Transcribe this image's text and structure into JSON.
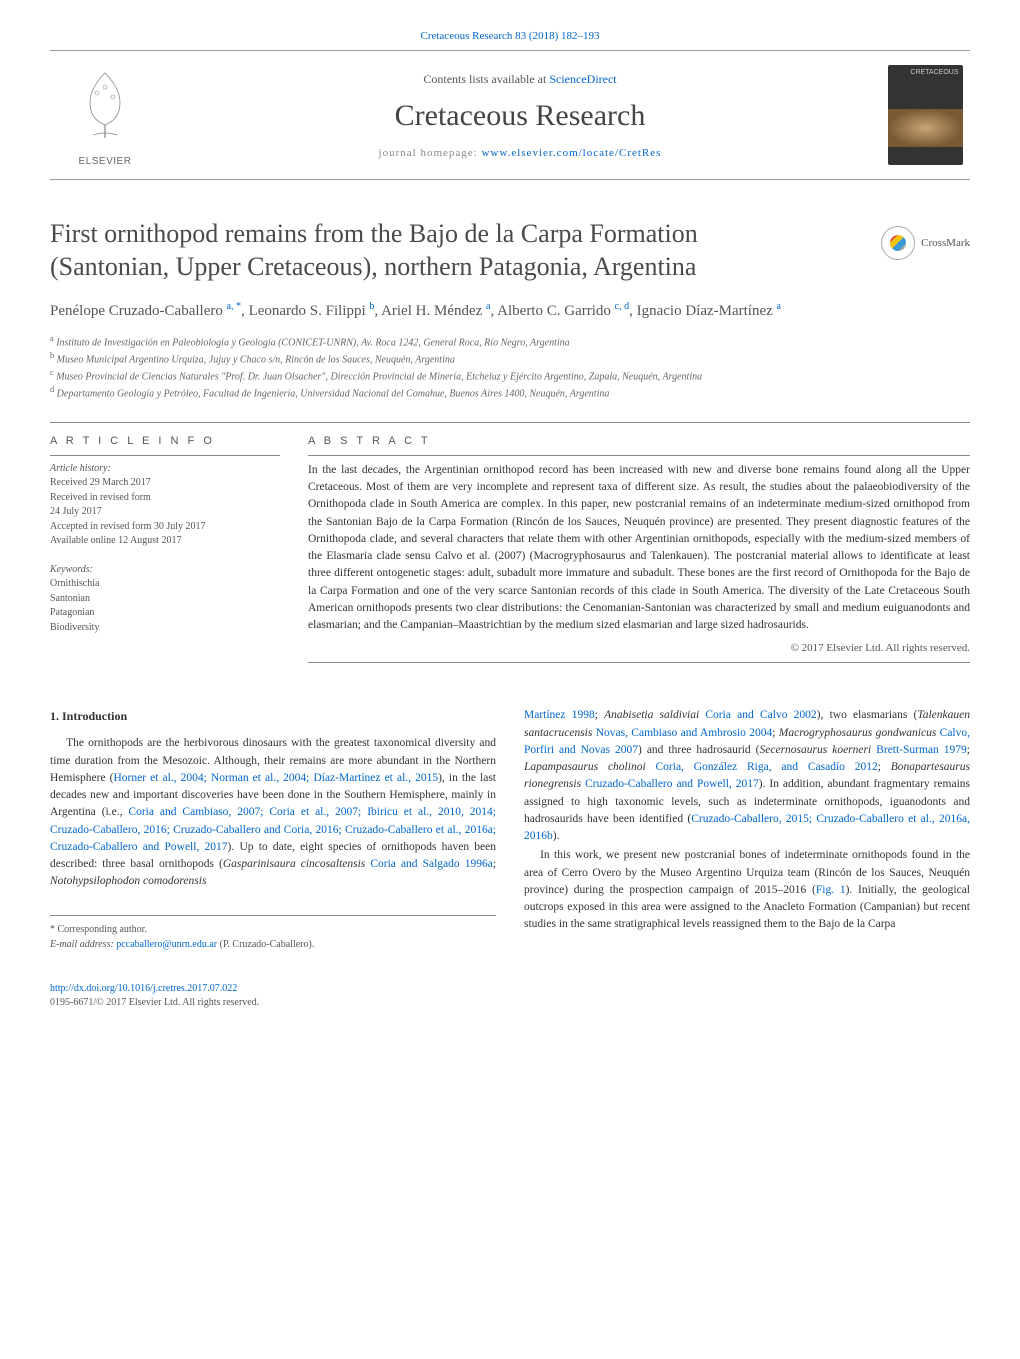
{
  "colors": {
    "link": "#0066cc",
    "text": "#2b2b2b",
    "muted": "#555555",
    "rule": "#888888",
    "background": "#ffffff"
  },
  "typography": {
    "body_font": "Georgia, Times New Roman, serif",
    "body_size_pt": 9,
    "title_size_pt": 20,
    "journal_size_pt": 22
  },
  "top_link": {
    "prefix": "Cretaceous Research 83 (2018) 182",
    "dash": "–",
    "suffix": "193"
  },
  "header": {
    "contents_prefix": "Contents lists available at ",
    "contents_link": "ScienceDirect",
    "journal": "Cretaceous Research",
    "homepage_prefix": "journal homepage: ",
    "homepage_url": "www.elsevier.com/locate/CretRes",
    "publisher": "ELSEVIER",
    "cover_label": "CRETACEOUS"
  },
  "crossmark": "CrossMark",
  "title_lines": [
    "First ornithopod remains from the Bajo de la Carpa Formation",
    "(Santonian, Upper Cretaceous), northern Patagonia, Argentina"
  ],
  "authors_html": "Penélope Cruzado-Caballero <sup>a, *</sup>, Leonardo S. Filippi <sup>b</sup>, Ariel H. Méndez <sup>a</sup>, Alberto C. Garrido <sup>c, d</sup>, Ignacio Díaz-Martínez <sup>a</sup>",
  "affiliations": [
    {
      "sup": "a",
      "text": "Instituto de Investigación en Paleobiología y Geología (CONICET-UNRN), Av. Roca 1242, General Roca, Río Negro, Argentina"
    },
    {
      "sup": "b",
      "text": "Museo Municipal Argentino Urquiza, Jujuy y Chaco s/n, Rincón de los Sauces, Neuquén, Argentina"
    },
    {
      "sup": "c",
      "text": "Museo Provincial de Ciencias Naturales \"Prof. Dr. Juan Olsacher\", Dirección Provincial de Minería, Etcheluz y Ejército Argentino, Zapala, Neuquén, Argentina"
    },
    {
      "sup": "d",
      "text": "Departamento Geología y Petróleo, Facultad de Ingeniería, Universidad Nacional del Comahue, Buenos Aires 1400, Neuquén, Argentina"
    }
  ],
  "article_info": {
    "head": "A R T I C L E   I N F O",
    "history_label": "Article history:",
    "received": "Received 29 March 2017",
    "revised_form": "Received in revised form",
    "revised_date": "24 July 2017",
    "accepted": "Accepted in revised form 30 July 2017",
    "online": "Available online 12 August 2017",
    "keywords_label": "Keywords:",
    "keywords": [
      "Ornithischia",
      "Santonian",
      "Patagonian",
      "Biodiversity"
    ]
  },
  "abstract": {
    "head": "A B S T R A C T",
    "body": "In the last decades, the Argentinian ornithopod record has been increased with new and diverse bone remains found along all the Upper Cretaceous. Most of them are very incomplete and represent taxa of different size. As result, the studies about the palaeobiodiversity of the Ornithopoda clade in South America are complex. In this paper, new postcranial remains of an indeterminate medium-sized ornithopod from the Santonian Bajo de la Carpa Formation (Rincón de los Sauces, Neuquén province) are presented. They present diagnostic features of the Ornithopoda clade, and several characters that relate them with other Argentinian ornithopods, especially with the medium-sized members of the Elasmaria clade sensu Calvo et al. (2007) (Macrogryphosaurus and Talenkauen). The postcranial material allows to identificate at least three different ontogenetic stages: adult, subadult more immature and subadult. These bones are the first record of Ornithopoda for the Bajo de la Carpa Formation and one of the very scarce Santonian records of this clade in South America. The diversity of the Late Cretaceous South American ornithopods presents two clear distributions: the Cenomanian-Santonian was characterized by small and medium euiguanodonts and elasmarian; and the Campanian–Maastrichtian by the medium sized elasmarian and large sized hadrosaurids.",
    "copyright": "© 2017 Elsevier Ltd. All rights reserved."
  },
  "intro": {
    "number": "1.",
    "title": "Introduction",
    "col1_p1": "The ornithopods are the herbivorous dinosaurs with the greatest taxonomical diversity and time duration from the Mesozoic. Although, their remains are more abundant in the Northern Hemisphere (Horner et al., 2004; Norman et al., 2004; Díaz-Martínez et al., 2015), in the last decades new and important discoveries have been done in the Southern Hemisphere, mainly in Argentina (i.e., Coria and Cambiaso, 2007; Coria et al., 2007; Ibiricu et al., 2010, 2014; Cruzado-Caballero, 2016; Cruzado-Caballero and Coria, 2016; Cruzado-Caballero et al., 2016a; Cruzado-Caballero and Powell, 2017). Up to date, eight species of ornithopods haven been described: three basal ornithopods (Gasparinisaura cincosaltensis Coria and Salgado 1996a; Notohypsilophodon comodorensis",
    "col2_p1": "Martínez 1998; Anabisetia saldiviai Coria and Calvo 2002), two elasmarians (Talenkauen santacrucensis Novas, Cambiaso and Ambrosio 2004; Macrogryphosaurus gondwanicus Calvo, Porfiri and Novas 2007) and three hadrosaurid (Secernosaurus koerneri Brett-Surman 1979; Lapampasaurus cholinoi Coria, González Riga, and Casadío 2012; Bonapartesaurus rionegrensis Cruzado-Caballero and Powell, 2017). In addition, abundant fragmentary remains assigned to high taxonomic levels, such as indeterminate ornithopods, iguanodonts and hadrosaurids have been identified (Cruzado-Caballero, 2015; Cruzado-Caballero et al., 2016a, 2016b).",
    "col2_p2": "In this work, we present new postcranial bones of indeterminate ornithopods found in the area of Cerro Overo by the Museo Argentino Urquiza team (Rincón de los Sauces, Neuquén province) during the prospection campaign of 2015–2016 (Fig. 1). Initially, the geological outcrops exposed in this area were assigned to the Anacleto Formation (Campanian) but recent studies in the same stratigraphical levels reassigned them to the Bajo de la Carpa"
  },
  "footnote": {
    "corr": "* Corresponding author.",
    "email_label": "E-mail address: ",
    "email": "pccaballero@unrn.edu.ar",
    "email_suffix": " (P. Cruzado-Caballero)."
  },
  "doi_block": {
    "doi": "http://dx.doi.org/10.1016/j.cretres.2017.07.022",
    "issn": "0195-6671/© 2017 Elsevier Ltd. All rights reserved."
  }
}
